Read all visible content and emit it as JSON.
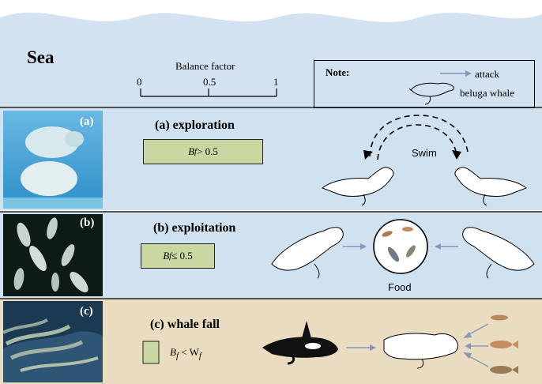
{
  "header": {
    "title": "Sea",
    "balance_factor_label": "Balance factor",
    "ticks": [
      "0",
      "0.5",
      "1"
    ]
  },
  "note": {
    "title": "Note:",
    "attack_label": "attack",
    "beluga_label": "beluga whale"
  },
  "phases": [
    {
      "photo_label": "(a)",
      "title": "(a) exploration",
      "condition_base": "B",
      "condition_sub": "f",
      "condition_rest": " > 0.5",
      "side_label": "Swim"
    },
    {
      "photo_label": "(b)",
      "title": "(b) exploitation",
      "condition_base": "B",
      "condition_sub": "f",
      "condition_rest": " ≤ 0.5",
      "side_label": "Food"
    },
    {
      "photo_label": "(c)",
      "title": "(c) whale fall",
      "condition_base": "B",
      "condition_sub": "f",
      "condition_rest": " < W",
      "condition_sub2": "f"
    }
  ],
  "colors": {
    "sea_blue": "#cfe0ee",
    "band_blue": "#d0e1f0",
    "band_sand": "#e9dcc0",
    "condition_green": "#c9d7a2",
    "arrow": "#8a96b8"
  }
}
